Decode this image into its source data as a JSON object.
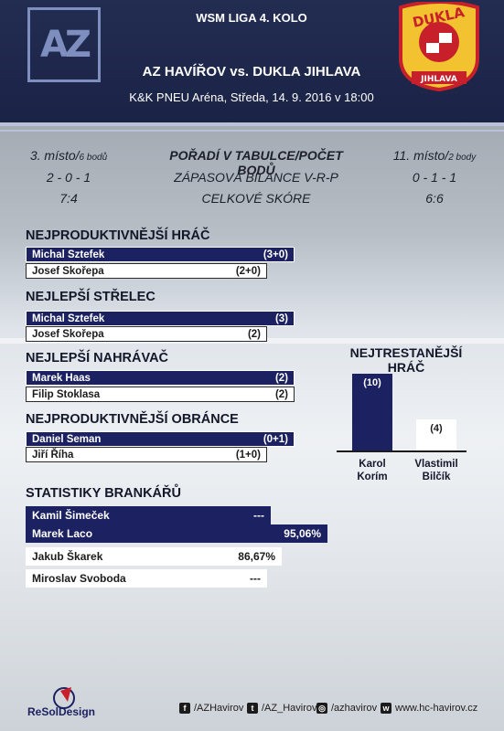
{
  "header": {
    "league": "WSM LIGA 4. KOLO",
    "match": "AZ HAVÍŘOV vs. DUKLA JIHLAVA",
    "venue": "K&K PNEU Aréna, Středa, 14. 9. 2016 v 18:00",
    "home_logo": "AZ",
    "away_logo_top": "DUKLA",
    "away_logo_bottom": "JIHLAVA"
  },
  "comparison": {
    "rows": [
      {
        "home": "3. místo/",
        "home_small": "6 bodů",
        "label": "POŘADÍ V TABULCE/POČET BODŮ",
        "away": "11. místo/",
        "away_small": "2 body"
      },
      {
        "home": "2 - 0 - 1",
        "home_small": "",
        "label": "ZÁPASOVÁ BILANCE V-R-P",
        "away": "0 - 1 - 1",
        "away_small": ""
      },
      {
        "home": "7:4",
        "home_small": "",
        "label": "CELKOVÉ SKÓRE",
        "away": "6:6",
        "away_small": ""
      }
    ]
  },
  "sections": [
    {
      "title": "NEJPRODUKTIVNĚJŠÍ HRÁČ",
      "home": {
        "name": "Michal Sztefek",
        "value": "(3+0)"
      },
      "away": {
        "name": "Josef Skořepa",
        "value": "(2+0)"
      }
    },
    {
      "title": "NEJLEPŠÍ STŘELEC",
      "home": {
        "name": "Michal Sztefek",
        "value": "(3)"
      },
      "away": {
        "name": "Josef Skořepa",
        "value": "(2)"
      }
    },
    {
      "title": "NEJLEPŠÍ NAHRÁVAČ",
      "home": {
        "name": "Marek Haas",
        "value": "(2)"
      },
      "away": {
        "name": "Filip Stoklasa",
        "value": "(2)"
      }
    },
    {
      "title": "NEJPRODUKTIVNĚJŠÍ OBRÁNCE",
      "home": {
        "name": "Daniel Seman",
        "value": "(0+1)"
      },
      "away": {
        "name": "Jiří Říha",
        "value": "(1+0)"
      }
    }
  ],
  "goalies": {
    "title": "STATISTIKY BRANKÁŘŮ",
    "rows": [
      {
        "name": "Kamil Šimeček",
        "value": "---"
      },
      {
        "name": "Marek Laco",
        "value": "95,06%"
      },
      {
        "name": "Jakub Škarek",
        "value": "86,67%"
      },
      {
        "name": "Miroslav Svoboda",
        "value": "---"
      }
    ]
  },
  "chart_data": {
    "type": "bar",
    "title": "NEJTRESTANĚJŠÍ HRÁČ",
    "categories": [
      "Karol Korím",
      "Vlastimil Bilčík"
    ],
    "values": [
      10,
      4
    ],
    "value_labels": [
      "(10)",
      "(4)"
    ],
    "colors": [
      "#1b2161",
      "#ffffff"
    ],
    "ylim": [
      0,
      10
    ]
  },
  "footer": {
    "brand": "ReSolDesign",
    "facebook": "/AZHavirov",
    "twitter": "/AZ_Havirov",
    "instagram": "/azhavirov",
    "web": "www.hc-havirov.cz"
  },
  "colors": {
    "header": "#1a2346",
    "accent": "#1b2161",
    "logo_red": "#c8202a",
    "logo_yellow": "#f2c230"
  }
}
